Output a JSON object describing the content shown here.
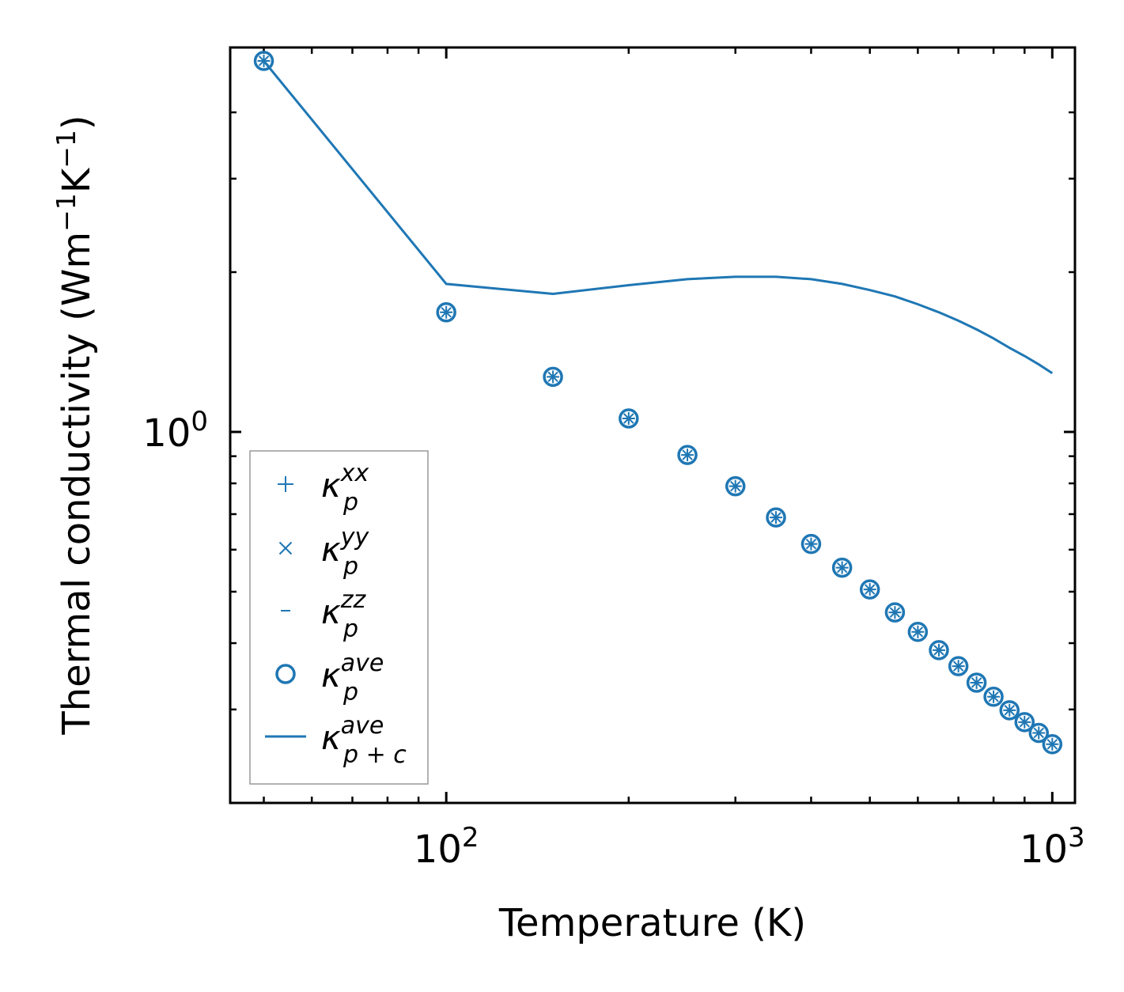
{
  "chart_data": {
    "type": "scatter",
    "x_scale": "log",
    "y_scale": "log",
    "xlabel": "Temperature (K)",
    "ylabel_main": "Thermal conductivity (Wm",
    "ylabel_sup1": "−1",
    "ylabel_mid": "K",
    "ylabel_sup2": "−1",
    "ylabel_end": ")",
    "xlim": [
      44,
      1090
    ],
    "ylim": [
      0.2,
      5.3
    ],
    "x_major_ticks": [
      {
        "value": 100,
        "base": "10",
        "exp": "2"
      },
      {
        "value": 1000,
        "base": "10",
        "exp": "3"
      }
    ],
    "y_major_ticks": [
      {
        "value": 1,
        "base": "10",
        "exp": "0"
      }
    ],
    "x_minor_ticks": [
      50,
      60,
      70,
      80,
      90,
      200,
      300,
      400,
      500,
      600,
      700,
      800,
      900
    ],
    "y_minor_ticks": [
      0.3,
      0.4,
      0.5,
      0.6,
      0.7,
      0.8,
      0.9,
      2,
      3,
      4
    ],
    "color": "#1f77b4",
    "x": [
      50,
      100,
      150,
      200,
      250,
      300,
      350,
      400,
      450,
      500,
      550,
      600,
      650,
      700,
      750,
      800,
      850,
      900,
      950,
      1000
    ],
    "series": [
      {
        "name": "κp^xx",
        "marker": "plus",
        "values": [
          5.0,
          1.68,
          1.27,
          1.06,
          0.905,
          0.79,
          0.69,
          0.615,
          0.555,
          0.505,
          0.457,
          0.42,
          0.388,
          0.362,
          0.337,
          0.317,
          0.299,
          0.284,
          0.271,
          0.258
        ]
      },
      {
        "name": "κp^yy",
        "marker": "x",
        "values": [
          5.0,
          1.68,
          1.27,
          1.06,
          0.905,
          0.79,
          0.69,
          0.615,
          0.555,
          0.505,
          0.457,
          0.42,
          0.388,
          0.362,
          0.337,
          0.317,
          0.299,
          0.284,
          0.271,
          0.258
        ]
      },
      {
        "name": "κp^zz",
        "marker": "hline",
        "values": [
          5.0,
          1.68,
          1.27,
          1.06,
          0.905,
          0.79,
          0.69,
          0.615,
          0.555,
          0.505,
          0.457,
          0.42,
          0.388,
          0.362,
          0.337,
          0.317,
          0.299,
          0.284,
          0.271,
          0.258
        ]
      },
      {
        "name": "κp^ave",
        "marker": "circle",
        "values": [
          5.0,
          1.68,
          1.27,
          1.06,
          0.905,
          0.79,
          0.69,
          0.615,
          0.555,
          0.505,
          0.457,
          0.42,
          0.388,
          0.362,
          0.337,
          0.317,
          0.299,
          0.284,
          0.271,
          0.258
        ]
      },
      {
        "name": "κp+c^ave",
        "marker": "line",
        "values": [
          5.0,
          1.9,
          1.82,
          1.89,
          1.94,
          1.96,
          1.96,
          1.94,
          1.9,
          1.85,
          1.8,
          1.74,
          1.68,
          1.62,
          1.56,
          1.5,
          1.44,
          1.39,
          1.34,
          1.29
        ]
      }
    ],
    "legend": {
      "location": "lower-left",
      "entries": [
        {
          "base": "κ",
          "sub": "p",
          "sup": "xx"
        },
        {
          "base": "κ",
          "sub": "p",
          "sup": "yy"
        },
        {
          "base": "κ",
          "sub": "p",
          "sup": "zz"
        },
        {
          "base": "κ",
          "sub": "p",
          "sup": "ave"
        },
        {
          "base": "κ",
          "sub": "p + c",
          "sup": "ave"
        }
      ]
    }
  }
}
